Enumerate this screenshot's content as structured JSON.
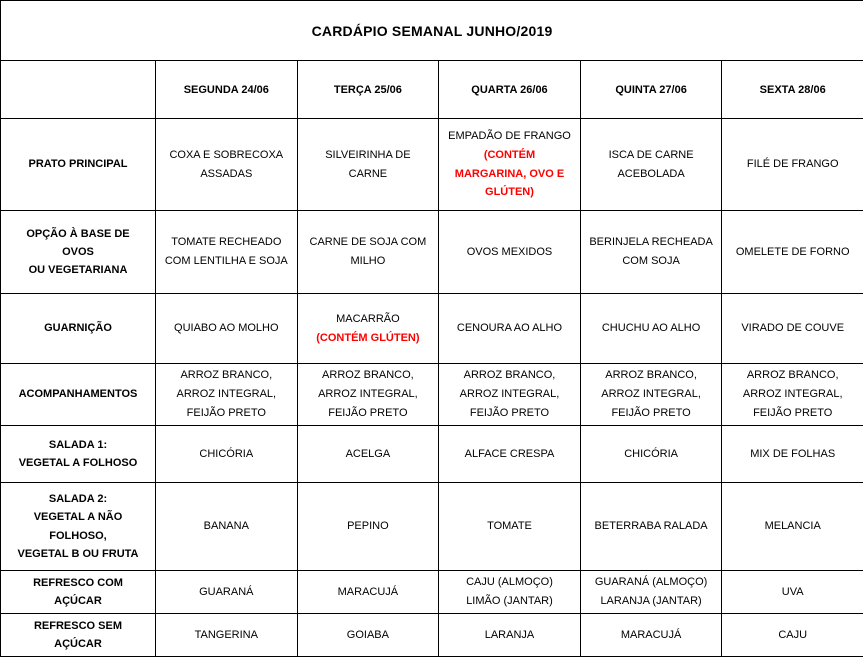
{
  "title": "CARDÁPIO SEMANAL JUNHO/2019",
  "colors": {
    "alert_red": "#ff0000",
    "text": "#000000",
    "border": "#000000"
  },
  "columns": [
    "",
    "SEGUNDA   24/06",
    "TERÇA 25/06",
    "QUARTA 26/06",
    "QUINTA 27/06",
    "SEXTA 28/06"
  ],
  "rows": [
    {
      "label": "PRATO PRINCIPAL",
      "cells": [
        {
          "text": "COXA E SOBRECOXA ASSADAS"
        },
        {
          "text": "SILVEIRINHA DE CARNE"
        },
        {
          "text": "EMPADÃO DE FRANGO",
          "alert": "(CONTÉM MARGARINA, OVO E GLÚTEN)"
        },
        {
          "text": "ISCA DE CARNE ACEBOLADA"
        },
        {
          "text": "FILÉ DE FRANGO"
        }
      ]
    },
    {
      "label": "OPÇÃO À BASE DE OVOS\nOU VEGETARIANA",
      "cells": [
        {
          "text": "TOMATE RECHEADO COM LENTILHA E SOJA"
        },
        {
          "text": "CARNE DE SOJA COM MILHO"
        },
        {
          "text": "OVOS MEXIDOS"
        },
        {
          "text": "BERINJELA RECHEADA COM SOJA"
        },
        {
          "text": "OMELETE DE FORNO"
        }
      ]
    },
    {
      "label": "GUARNIÇÃO",
      "cells": [
        {
          "text": "QUIABO AO MOLHO"
        },
        {
          "text": "MACARRÃO",
          "alert": "(CONTÉM GLÚTEN)"
        },
        {
          "text": "CENOURA AO ALHO"
        },
        {
          "text": "CHUCHU AO ALHO"
        },
        {
          "text": "VIRADO DE COUVE"
        }
      ]
    },
    {
      "label": "ACOMPANHAMENTOS",
      "cells": [
        {
          "text": "ARROZ BRANCO, ARROZ INTEGRAL, FEIJÃO PRETO"
        },
        {
          "text": "ARROZ BRANCO, ARROZ INTEGRAL, FEIJÃO PRETO"
        },
        {
          "text": "ARROZ BRANCO, ARROZ INTEGRAL, FEIJÃO PRETO"
        },
        {
          "text": "ARROZ BRANCO, ARROZ INTEGRAL, FEIJÃO PRETO"
        },
        {
          "text": "ARROZ BRANCO, ARROZ INTEGRAL, FEIJÃO PRETO"
        }
      ]
    },
    {
      "label": "SALADA 1:\nVEGETAL A FOLHOSO",
      "cells": [
        {
          "text": "CHICÓRIA"
        },
        {
          "text": "ACELGA"
        },
        {
          "text": "ALFACE CRESPA"
        },
        {
          "text": "CHICÓRIA"
        },
        {
          "text": "MIX DE FOLHAS"
        }
      ]
    },
    {
      "label": "SALADA 2:\nVEGETAL A NÃO FOLHOSO,\nVEGETAL B OU FRUTA",
      "cells": [
        {
          "text": "BANANA"
        },
        {
          "text": "PEPINO"
        },
        {
          "text": "TOMATE"
        },
        {
          "text": "BETERRABA RALADA"
        },
        {
          "text": "MELANCIA"
        }
      ]
    },
    {
      "label": "REFRESCO COM AÇÚCAR",
      "cells": [
        {
          "text": "GUARANÁ"
        },
        {
          "text": "MARACUJÁ"
        },
        {
          "text": "CAJU (ALMOÇO)\nLIMÃO (JANTAR)"
        },
        {
          "text": "GUARANÁ (ALMOÇO)\nLARANJA (JANTAR)"
        },
        {
          "text": "UVA"
        }
      ]
    },
    {
      "label": "REFRESCO SEM AÇÚCAR",
      "cells": [
        {
          "text": "TANGERINA"
        },
        {
          "text": "GOIABA"
        },
        {
          "text": "LARANJA"
        },
        {
          "text": "MARACUJÁ"
        },
        {
          "text": "CAJU"
        }
      ]
    }
  ]
}
